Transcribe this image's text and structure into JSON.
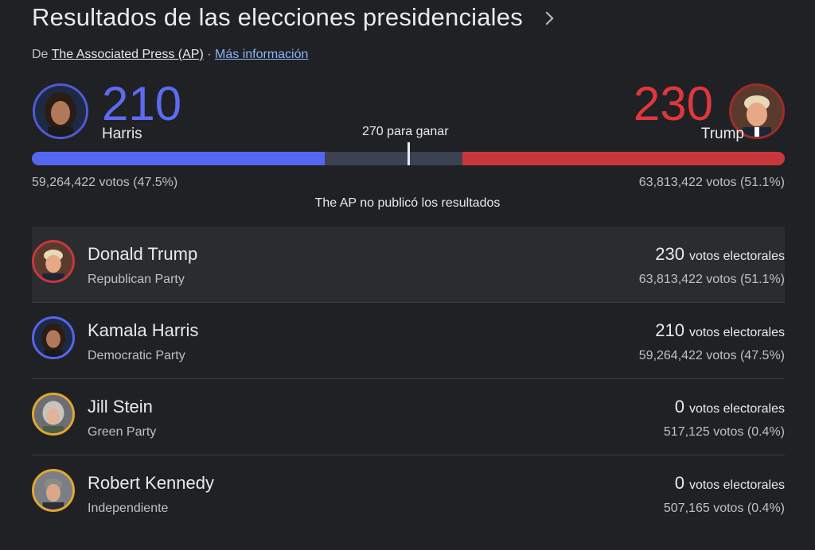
{
  "header": {
    "title": "Resultados de las elecciones presidenciales",
    "source_prefix": "De",
    "source_name": "The Associated Press (AP)",
    "separator": "·",
    "more_info": "Más información"
  },
  "summary": {
    "left": {
      "electoral": "210",
      "name": "Harris",
      "popular": "59,264,422 votos (47.5%)",
      "color": "#5c6bf2",
      "share": 0.389
    },
    "right": {
      "electoral": "230",
      "name": "Trump",
      "popular": "63,813,422 votos (51.1%)",
      "color": "#e0363d",
      "share": 0.428
    },
    "to_win": "270 para ganar",
    "note": "The AP no publicó los resultados"
  },
  "candidates": [
    {
      "name": "Donald Trump",
      "party": "Republican Party",
      "electoral": "230",
      "electoral_label": "votos electorales",
      "popular": "63,813,422 votos (51.1%)",
      "ring": "#c9373d",
      "avatar": "trump-avatar"
    },
    {
      "name": "Kamala Harris",
      "party": "Democratic Party",
      "electoral": "210",
      "electoral_label": "votos electorales",
      "popular": "59,264,422 votos (47.5%)",
      "ring": "#5566f0",
      "avatar": "harris-avatar"
    },
    {
      "name": "Jill Stein",
      "party": "Green Party",
      "electoral": "0",
      "electoral_label": "votos electorales",
      "popular": "517,125 votos (0.4%)",
      "ring": "#e3a72f",
      "avatar": "stein-avatar"
    },
    {
      "name": "Robert Kennedy",
      "party": "Independiente",
      "electoral": "0",
      "electoral_label": "votos electorales",
      "popular": "507,165 votos (0.4%)",
      "ring": "#e3a72f",
      "avatar": "kennedy-avatar"
    }
  ]
}
